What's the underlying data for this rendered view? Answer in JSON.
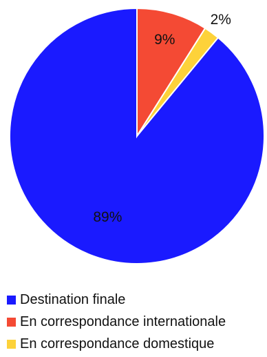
{
  "chart_data": {
    "type": "pie",
    "slices": [
      {
        "name": "Destination finale",
        "value": 89,
        "label": "89%",
        "color": "#1a1aff"
      },
      {
        "name": "En correspondance internationale",
        "value": 9,
        "label": "9%",
        "color": "#f44a34"
      },
      {
        "name": "En correspondance domestique",
        "value": 2,
        "label": "2%",
        "color": "#fdd23a"
      }
    ],
    "legend_position": "bottom-left"
  }
}
